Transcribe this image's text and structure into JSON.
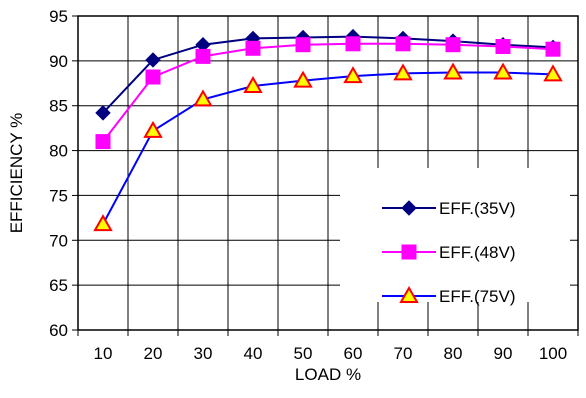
{
  "chart_data": {
    "type": "line",
    "xlabel": "LOAD %",
    "ylabel": "EFFICIENCY %",
    "x": [
      10,
      20,
      30,
      40,
      50,
      60,
      70,
      80,
      90,
      100
    ],
    "xlim": [
      5,
      105
    ],
    "ylim": [
      60,
      95
    ],
    "yticks": [
      60,
      65,
      70,
      75,
      80,
      85,
      90,
      95
    ],
    "grid": true,
    "legend_position": "right",
    "series": [
      {
        "name": "EFF.(35V)",
        "color": "#000080",
        "marker": "diamond",
        "values": [
          84.2,
          90.1,
          91.8,
          92.5,
          92.6,
          92.7,
          92.5,
          92.2,
          91.8,
          91.5
        ]
      },
      {
        "name": "EFF.(48V)",
        "color": "#ff00ff",
        "marker": "square",
        "values": [
          81.0,
          88.2,
          90.5,
          91.4,
          91.8,
          91.9,
          91.9,
          91.8,
          91.6,
          91.3
        ]
      },
      {
        "name": "EFF.(75V)",
        "color": "#0000ff",
        "marker": "triangle",
        "marker_fill": "#ffff00",
        "marker_stroke": "#ff0000",
        "values": [
          71.8,
          82.2,
          85.7,
          87.2,
          87.8,
          88.3,
          88.6,
          88.7,
          88.7,
          88.5
        ]
      }
    ]
  }
}
